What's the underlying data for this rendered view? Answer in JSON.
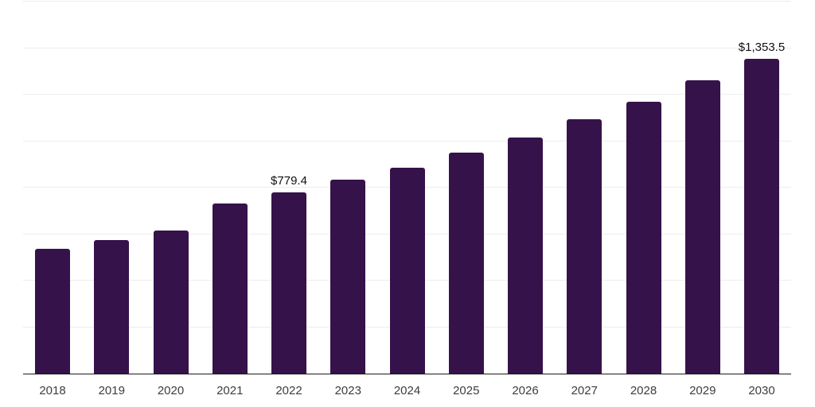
{
  "chart_data": {
    "type": "bar",
    "title": "",
    "xlabel": "",
    "ylabel": "",
    "categories": [
      "2018",
      "2019",
      "2020",
      "2021",
      "2022",
      "2023",
      "2024",
      "2025",
      "2026",
      "2027",
      "2028",
      "2029",
      "2030"
    ],
    "values": [
      536,
      573,
      615,
      730,
      779.4,
      835,
      886,
      952,
      1017,
      1093,
      1170,
      1261,
      1353.5
    ],
    "data_labels": {
      "2022": "$779.4",
      "2030": "$1,353.5"
    },
    "ylim": [
      0,
      1600
    ],
    "gridline_step": 200,
    "grid": "horizontal-only",
    "legend_position": "none",
    "colors": {
      "bar": "#36124B",
      "axis_line": "#1a1a1a",
      "gridline": "#ececec",
      "tick_label": "#3d3d3d",
      "data_label": "#111111",
      "background": "#ffffff"
    }
  }
}
